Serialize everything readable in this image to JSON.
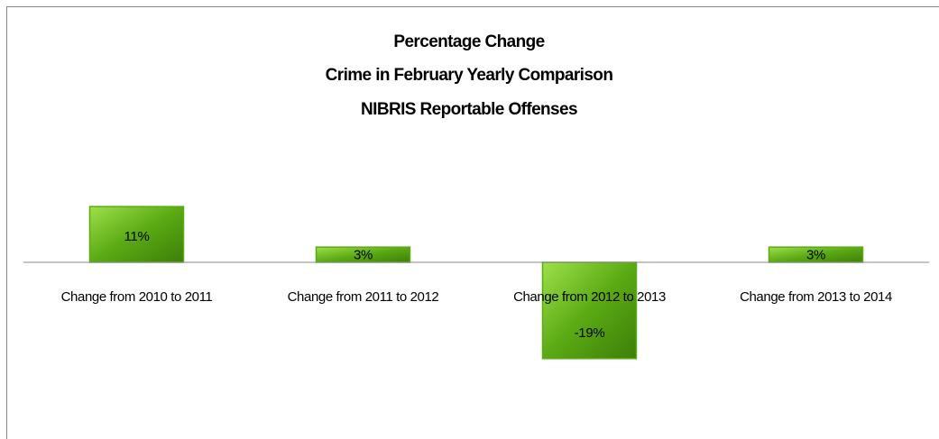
{
  "chart_data": {
    "type": "bar",
    "title": [
      "Percentage Change",
      "Crime in February Yearly Comparison",
      "NIBRIS Reportable Offenses"
    ],
    "categories": [
      "Change from 2010 to 2011",
      "Change from 2011 to 2012",
      "Change from 2012 to 2013",
      "Change from 2013 to 2014"
    ],
    "values": [
      11,
      3,
      -19,
      3
    ],
    "value_labels": [
      "11%",
      "3%",
      "-19%",
      "3%"
    ],
    "color": "#5aaa14"
  }
}
